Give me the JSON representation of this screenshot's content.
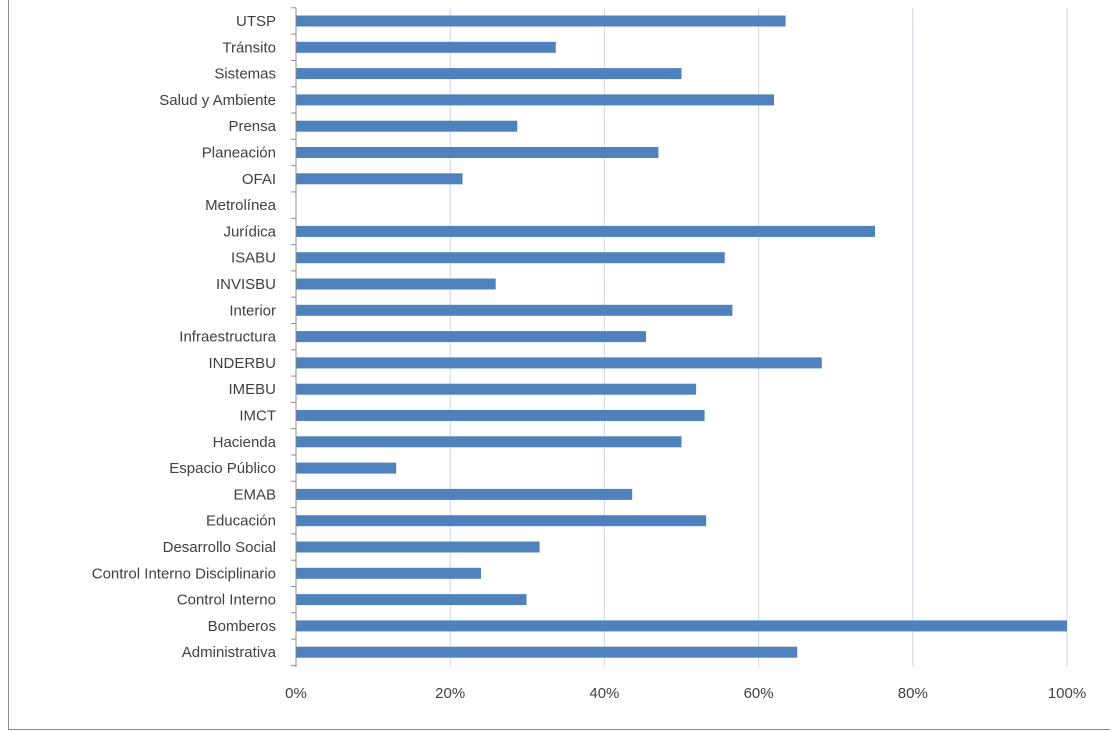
{
  "chart_data": {
    "type": "bar",
    "orientation": "horizontal",
    "categories": [
      "UTSP",
      "Tránsito",
      "Sistemas",
      "Salud y Ambiente",
      "Prensa",
      "Planeación",
      "OFAI",
      "Metrolínea",
      "Jurídica",
      "ISABU",
      "INVISBU",
      "Interior",
      "Infraestructura",
      "INDERBU",
      "IMEBU",
      "IMCT",
      "Hacienda",
      "Espacio Público",
      "EMAB",
      "Educación",
      "Desarrollo Social",
      "Control Interno Disciplinario",
      "Control Interno",
      "Bomberos",
      "Administrativa"
    ],
    "values": [
      63.5,
      33.7,
      50.0,
      62.0,
      28.7,
      47.0,
      21.6,
      0,
      75.1,
      55.6,
      25.9,
      56.6,
      45.4,
      68.2,
      51.9,
      53.0,
      50.0,
      13.0,
      43.6,
      53.2,
      31.6,
      24.0,
      29.9,
      100.0,
      65.0
    ],
    "xlim": [
      0,
      100
    ],
    "x_ticks": [
      "0%",
      "20%",
      "40%",
      "60%",
      "80%",
      "100%"
    ],
    "x_tick_values": [
      0,
      20,
      40,
      60,
      80,
      100
    ],
    "grid": true,
    "bar_color": "#4f81bd",
    "grid_color": "#d6dbe9",
    "axis_color": "#8c8c8c",
    "title": "",
    "xlabel": "",
    "ylabel": ""
  }
}
